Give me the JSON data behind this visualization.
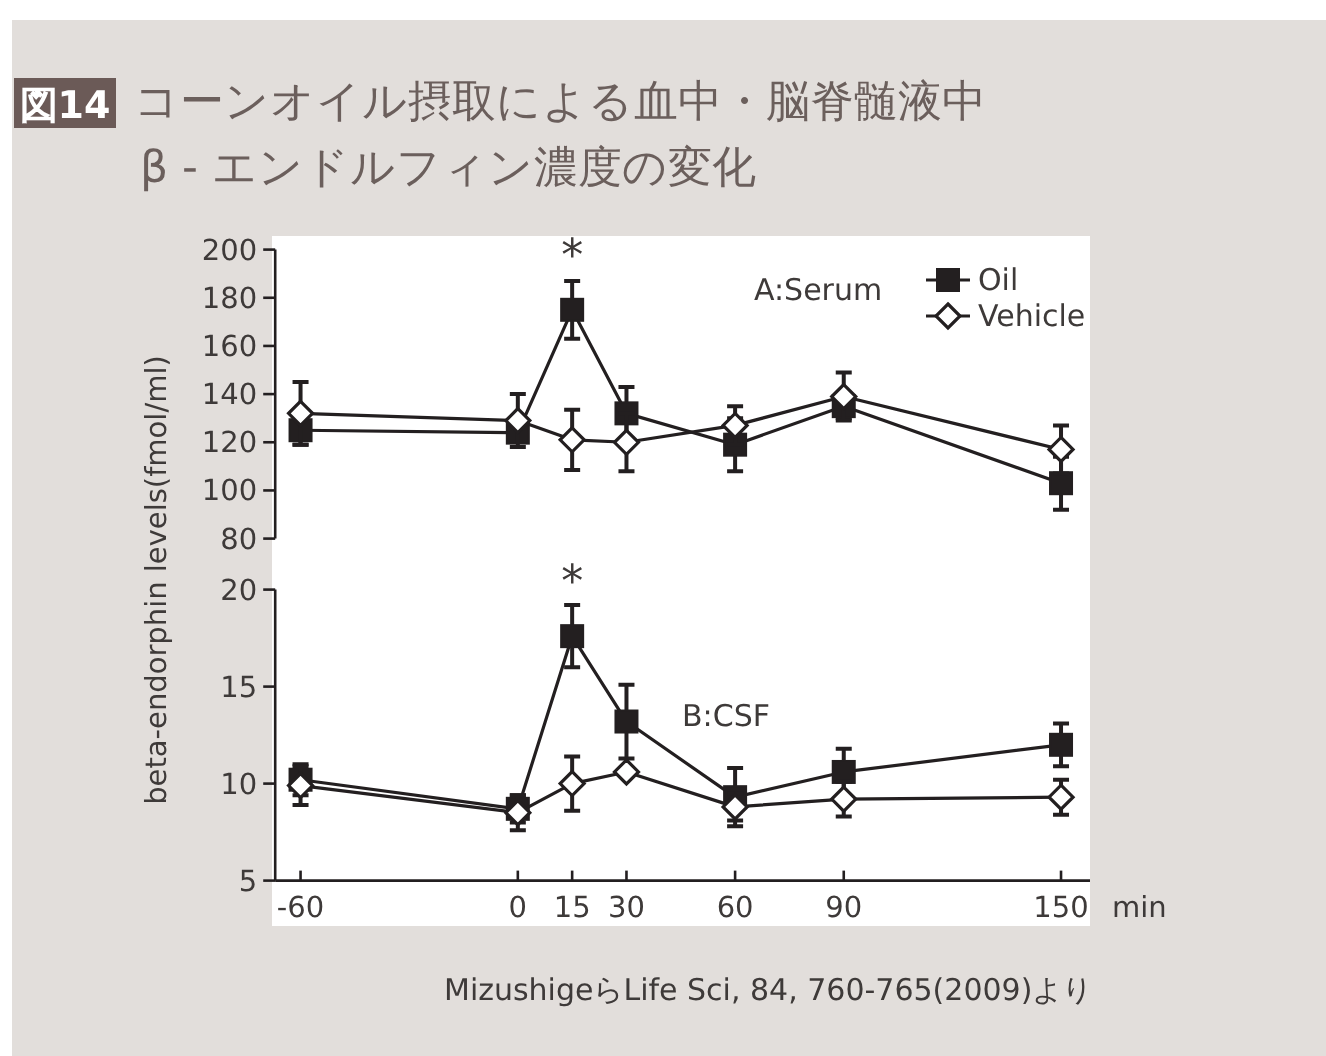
{
  "chart_data": [
    {
      "type": "line",
      "title": "コーンオイル摂取による血中・脳脊髄液中\nβ - エンドルフィン濃度の変化",
      "ylabel": "beta-endorphin levels(fmol/ml)",
      "x": [
        -60,
        0,
        15,
        30,
        60,
        90,
        150
      ],
      "xlim": [
        -67,
        158
      ],
      "ylim": [
        80,
        200
      ],
      "yticks": [
        80,
        100,
        120,
        140,
        160,
        180,
        200
      ],
      "tick_labels": "y",
      "grid": false,
      "legend": "top right",
      "annotations": [
        "図14",
        "A:Serum",
        {
          "text": "*",
          "x": 15,
          "y": 175
        }
      ],
      "series": [
        {
          "name": "Oil",
          "color": "#231f20",
          "marker": "square",
          "values": [
            125,
            124,
            175,
            132,
            119,
            135,
            103
          ],
          "errors": [
            6,
            null,
            12,
            11,
            11,
            5,
            11
          ]
        },
        {
          "name": "Vehicle",
          "color": "#231f20",
          "marker": "diamond",
          "values": [
            132,
            129,
            121,
            120,
            127,
            139,
            117
          ],
          "errors": [
            13,
            11,
            12.5,
            12,
            8,
            10,
            10
          ]
        }
      ]
    },
    {
      "type": "line",
      "xlabel": "min",
      "x": [
        -60,
        0,
        15,
        30,
        60,
        90,
        150
      ],
      "xlim": [
        -67,
        158
      ],
      "xticks": [
        -60,
        0,
        15,
        30,
        60,
        90,
        150
      ],
      "ylim": [
        5,
        20
      ],
      "yticks": [
        5,
        10,
        15,
        20
      ],
      "grid": false,
      "legend": false,
      "annotations": [
        "B:CSF",
        {
          "text": "*",
          "x": 15,
          "y": 17.6
        },
        "MizushigeらLife Sci, 84, 760-765(2009)より"
      ],
      "series": [
        {
          "color": "#231f20",
          "marker": "square",
          "values": [
            10.2,
            8.7,
            17.6,
            13.2,
            9.3,
            10.6,
            12.0
          ],
          "errors": [
            0.8,
            0.7,
            1.6,
            1.9,
            1.5,
            1.2,
            1.1
          ]
        },
        {
          "color": "#231f20",
          "marker": "diamond",
          "values": [
            9.9,
            8.5,
            10.0,
            10.6,
            8.8,
            9.2,
            9.3
          ],
          "errors": [
            1.0,
            0.9,
            1.4,
            null,
            0.7,
            0.9,
            0.9
          ]
        }
      ]
    }
  ]
}
